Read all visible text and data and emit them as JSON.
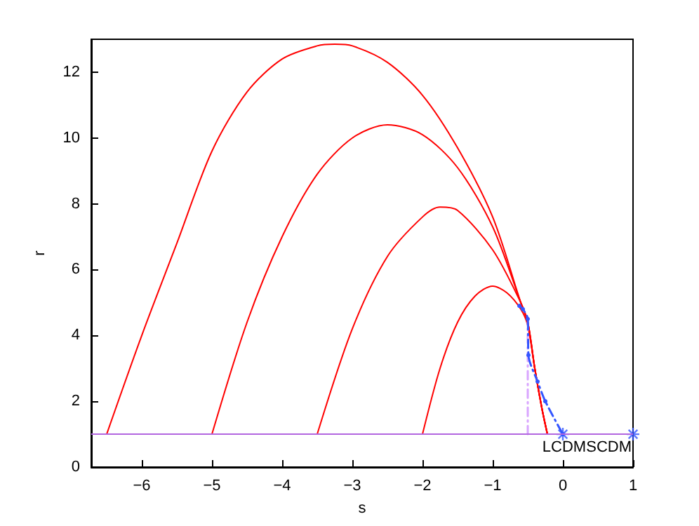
{
  "chart_data": {
    "type": "line",
    "xlabel": "s",
    "ylabel": "r",
    "xlim": [
      -6.72,
      1
    ],
    "ylim": [
      0,
      13
    ],
    "xticks": [
      -6,
      -5,
      -4,
      -3,
      -2,
      -1,
      0,
      1
    ],
    "yticks": [
      0,
      2,
      4,
      6,
      8,
      10,
      12
    ],
    "grid": false,
    "series": [
      {
        "color": "#ff0000",
        "marker": "none",
        "line_style": "solid",
        "x": [
          -6.5,
          -6,
          -5.5,
          -5,
          -4.5,
          -4,
          -3.5,
          -3.25,
          -3,
          -2.5,
          -2,
          -1.5,
          -1,
          -0.6,
          -0.5,
          -0.4,
          -0.3,
          -0.22
        ],
        "values": [
          1,
          4.0,
          6.8,
          9.6,
          11.4,
          12.4,
          12.8,
          12.85,
          12.8,
          12.3,
          11.3,
          9.7,
          7.6,
          5.0,
          4.4,
          3.0,
          1.8,
          1
        ]
      },
      {
        "color": "#ff0000",
        "marker": "none",
        "line_style": "solid",
        "x": [
          -5,
          -4.5,
          -4,
          -3.5,
          -3,
          -2.5,
          -2,
          -1.5,
          -1,
          -0.6,
          -0.5,
          -0.4,
          -0.3,
          -0.22
        ],
        "values": [
          1,
          4.4,
          7.0,
          8.9,
          10.0,
          10.4,
          10.1,
          9.1,
          7.3,
          5.0,
          4.4,
          3.0,
          1.8,
          1
        ]
      },
      {
        "color": "#ff0000",
        "marker": "none",
        "line_style": "solid",
        "x": [
          -3.5,
          -3,
          -2.5,
          -2,
          -1.75,
          -1.5,
          -1,
          -0.6,
          -0.5,
          -0.4,
          -0.3,
          -0.22
        ],
        "values": [
          1,
          4.2,
          6.4,
          7.6,
          7.9,
          7.8,
          6.6,
          5.0,
          4.4,
          3.0,
          1.8,
          1
        ]
      },
      {
        "color": "#ff0000",
        "marker": "none",
        "line_style": "solid",
        "x": [
          -2,
          -1.75,
          -1.5,
          -1.25,
          -1,
          -0.8,
          -0.6,
          -0.5,
          -0.4,
          -0.3,
          -0.22
        ],
        "values": [
          1,
          3.0,
          4.4,
          5.2,
          5.5,
          5.3,
          4.8,
          4.3,
          3.0,
          1.8,
          1
        ]
      },
      {
        "color": "#d9a6ff",
        "marker": "none",
        "line_style": "dashed",
        "x": [
          -0.5,
          -0.5
        ],
        "values": [
          1,
          4.4
        ]
      },
      {
        "color": "#3355ff",
        "marker": "circle",
        "line_style": "dashed",
        "x": [
          -0.62,
          -0.57,
          -0.5,
          -0.49,
          -0.36,
          -0.25,
          0
        ],
        "values": [
          4.9,
          4.8,
          4.5,
          3.4,
          2.6,
          2.0,
          1
        ]
      },
      {
        "type": "scatter",
        "color": "#3355ff",
        "marker": "star",
        "x": [
          0,
          1
        ],
        "values": [
          1,
          1
        ]
      }
    ],
    "ref_lines": [
      {
        "axis": "y",
        "value": 1,
        "color": "#b266e0"
      }
    ],
    "annotations": [
      "LCDM",
      "SCDM"
    ]
  }
}
